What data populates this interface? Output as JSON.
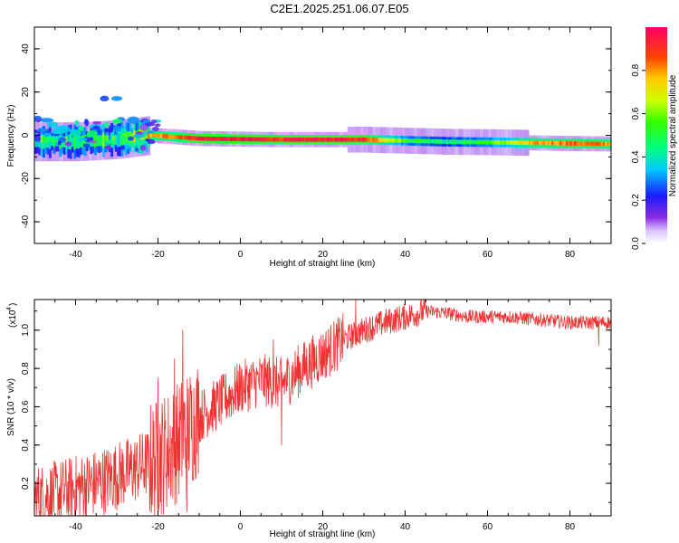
{
  "title": "C2E1.2025.251.06.07.E05",
  "chart_data": [
    {
      "type": "heatmap",
      "name": "spectrogram",
      "xlabel": "Height of straight line (km)",
      "ylabel": "Frequency (Hz)",
      "xlim": [
        -50,
        90
      ],
      "ylim": [
        -50,
        50
      ],
      "xticks": [
        "-40",
        "-20",
        "0",
        "20",
        "40",
        "60",
        "80"
      ],
      "xtick_values": [
        -40,
        -20,
        0,
        20,
        40,
        60,
        80
      ],
      "yticks": [
        "-40",
        "-20",
        "0",
        "20",
        "40"
      ],
      "ytick_values": [
        -40,
        -20,
        0,
        20,
        40
      ],
      "colorbar": {
        "label": "Normalized spectral amplitude",
        "ticks": [
          "0.0",
          "0.2",
          "0.4",
          "0.6",
          "0.8"
        ],
        "tick_values": [
          0.0,
          0.2,
          0.4,
          0.6,
          0.8
        ],
        "range": [
          0,
          1
        ]
      },
      "ridge": {
        "x": [
          -50,
          -40,
          -30,
          -22,
          -10,
          0,
          10,
          20,
          30,
          40,
          50,
          60,
          70,
          80,
          90
        ],
        "freq": [
          -3,
          -3,
          -2,
          0,
          -1.5,
          -1.8,
          -2,
          -2,
          -2,
          -2.5,
          -3,
          -3.2,
          -3.5,
          -3.8,
          -4
        ],
        "amplitude": [
          0.45,
          0.5,
          0.45,
          0.75,
          0.95,
          0.95,
          0.9,
          0.95,
          0.9,
          0.55,
          0.45,
          0.55,
          0.75,
          0.85,
          0.8
        ]
      },
      "scattered_bursts": [
        {
          "x": -48,
          "freq": 2,
          "amplitude": 0.3
        },
        {
          "x": -45,
          "freq": -2,
          "amplitude": 0.5
        },
        {
          "x": -43,
          "freq": 3,
          "amplitude": 0.35
        },
        {
          "x": -40,
          "freq": 1,
          "amplitude": 0.4
        },
        {
          "x": -37,
          "freq": -4,
          "amplitude": 0.45
        },
        {
          "x": -35,
          "freq": 4,
          "amplitude": 0.35
        },
        {
          "x": -33,
          "freq": 17,
          "amplitude": 0.25
        },
        {
          "x": -30,
          "freq": 17,
          "amplitude": 0.3
        },
        {
          "x": -29,
          "freq": 2,
          "amplitude": 0.4
        },
        {
          "x": -26,
          "freq": 7,
          "amplitude": 0.3
        },
        {
          "x": -24,
          "freq": -3,
          "amplitude": 0.4
        },
        {
          "x": -47,
          "freq": 7,
          "amplitude": 0.3
        }
      ]
    },
    {
      "type": "line",
      "name": "snr",
      "xlabel": "Height of straight line (km)",
      "ylabel": "SNR (10 * v/v)",
      "scale_note": "(x10",
      "scale_exp": "4",
      "scale_close": ")",
      "xlim": [
        -50,
        90
      ],
      "ylim": [
        0.03,
        1.16
      ],
      "xticks": [
        "-40",
        "-20",
        "0",
        "20",
        "40",
        "60",
        "80"
      ],
      "xtick_values": [
        -40,
        -20,
        0,
        20,
        40,
        60,
        80
      ],
      "yticks": [
        "0.2",
        "0.4",
        "0.6",
        "0.8",
        "1.0"
      ],
      "ytick_values": [
        0.2,
        0.4,
        0.6,
        0.8,
        1.0
      ],
      "color": "#ee3333",
      "trend": {
        "x": [
          -50,
          -45,
          -40,
          -35,
          -30,
          -25,
          -20,
          -15,
          -10,
          -5,
          0,
          5,
          10,
          15,
          20,
          25,
          30,
          35,
          40,
          45,
          50,
          55,
          60,
          65,
          70,
          75,
          80,
          85,
          90
        ],
        "y": [
          0.12,
          0.14,
          0.17,
          0.2,
          0.24,
          0.28,
          0.33,
          0.42,
          0.55,
          0.62,
          0.7,
          0.74,
          0.72,
          0.8,
          0.87,
          0.95,
          1.0,
          1.04,
          1.07,
          1.1,
          1.09,
          1.07,
          1.07,
          1.07,
          1.06,
          1.05,
          1.04,
          1.04,
          1.04
        ]
      },
      "spikes": [
        {
          "x": -14,
          "y": 1.0
        },
        {
          "x": -16,
          "y": 0.85
        },
        {
          "x": -13,
          "y": 0.05
        },
        {
          "x": -20,
          "y": 0.75
        },
        {
          "x": 10,
          "y": 0.4
        },
        {
          "x": 8,
          "y": 0.95
        },
        {
          "x": 28,
          "y": 1.16
        },
        {
          "x": 87,
          "y": 0.92
        }
      ]
    }
  ]
}
